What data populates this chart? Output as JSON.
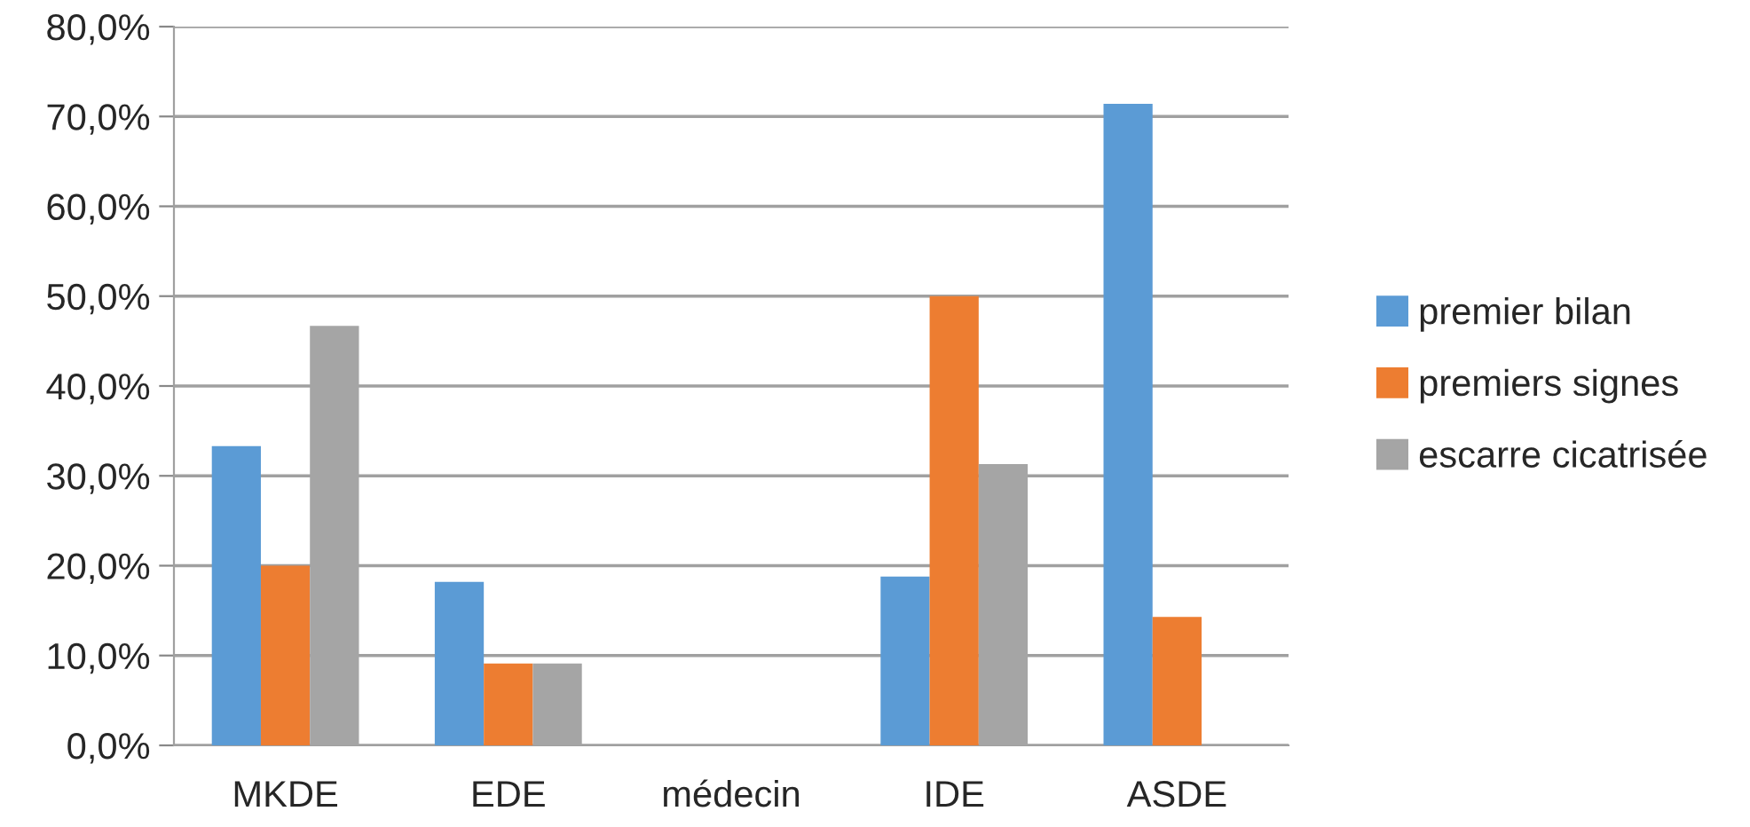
{
  "chart_data": {
    "type": "bar",
    "categories": [
      "MKDE",
      "EDE",
      "médecin",
      "IDE",
      "ASDE"
    ],
    "series": [
      {
        "name": "premier bilan",
        "color": "#5b9bd5",
        "values": [
          33.3,
          18.2,
          0,
          18.8,
          71.4
        ]
      },
      {
        "name": "premiers signes",
        "color": "#ed7d31",
        "values": [
          20.0,
          9.1,
          0,
          50.0,
          14.3
        ]
      },
      {
        "name": "escarre cicatrisée",
        "color": "#a5a5a5",
        "values": [
          46.7,
          9.1,
          0,
          31.3,
          0
        ]
      }
    ],
    "ylim": [
      0,
      80
    ],
    "yticks": [
      {
        "value": 0,
        "label": "0,0%"
      },
      {
        "value": 10,
        "label": "10,0%"
      },
      {
        "value": 20,
        "label": "20,0%"
      },
      {
        "value": 30,
        "label": "30,0%"
      },
      {
        "value": 40,
        "label": "40,0%"
      },
      {
        "value": 50,
        "label": "50,0%"
      },
      {
        "value": 60,
        "label": "60,0%"
      },
      {
        "value": 70,
        "label": "70,0%"
      },
      {
        "value": 80,
        "label": "80,0%"
      }
    ],
    "grid": "y",
    "legend": "right"
  }
}
